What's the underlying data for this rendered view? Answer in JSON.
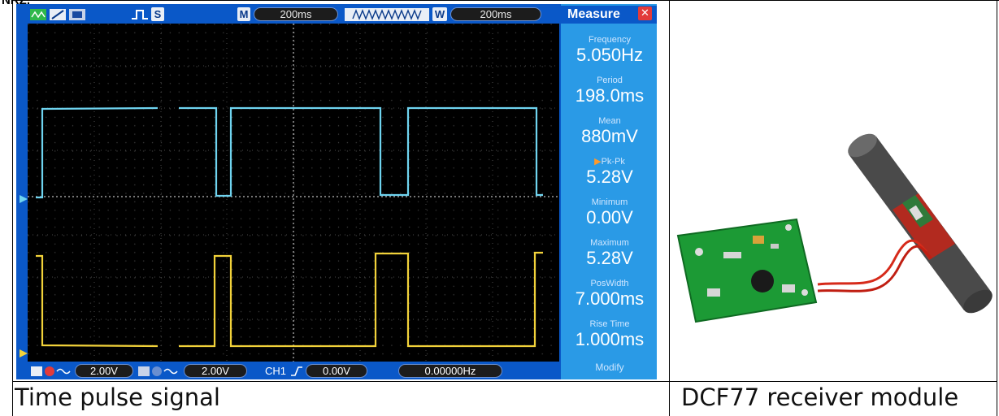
{
  "document": {
    "cut_off_text": "NRZ.",
    "captions": {
      "left": "Time pulse signal",
      "right": "DCF77 receiver module"
    }
  },
  "oscilloscope": {
    "top_bar": {
      "mode_badge": "M",
      "main_timebase": "200ms",
      "window_badge": "W",
      "window_timebase": "200ms",
      "stop_badge": "S"
    },
    "bottom_bar": {
      "ch1_volts_div": "2.00V",
      "ch2_volts_div": "2.00V",
      "trigger_source": "CH1",
      "trigger_level": "0.00V",
      "trigger_frequency": "0.00000Hz"
    },
    "measure_panel": {
      "title": "Measure",
      "items": [
        {
          "label": "Frequency",
          "value": "5.050Hz"
        },
        {
          "label": "Period",
          "value": "198.0ms"
        },
        {
          "label": "Mean",
          "value": "880mV"
        },
        {
          "label": "Pk-Pk",
          "value": "5.28V"
        },
        {
          "label": "Minimum",
          "value": "0.00V"
        },
        {
          "label": "Maximum",
          "value": "5.28V"
        },
        {
          "label": "PosWidth",
          "value": "7.000ms"
        },
        {
          "label": "Rise Time",
          "value": "1.000ms"
        }
      ],
      "footer": "Modify"
    },
    "colors": {
      "frame": "#0a58c8",
      "channel1_trace": "#6fd4f0",
      "channel2_trace": "#f2d23a",
      "measure_panel": "#2a9ae6"
    }
  }
}
